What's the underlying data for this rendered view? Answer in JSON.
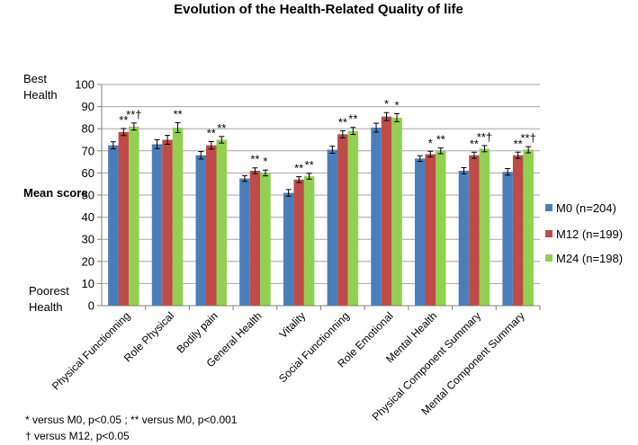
{
  "chart_data": {
    "type": "bar",
    "title": "Evolution of the Health-Related Quality of life",
    "ylabel": "Mean score",
    "top_label": "Best Health",
    "bottom_label": "Poorest Health",
    "ylim": [
      0,
      100
    ],
    "yticks": [
      0,
      10,
      20,
      30,
      40,
      50,
      60,
      70,
      80,
      90,
      100
    ],
    "grid": true,
    "legend_position": "right",
    "categories": [
      "Physical Functionning",
      "Role Physical",
      "Bodily pain",
      "General Health",
      "Vitality",
      "Social Functionning",
      "Role Emotional",
      "Mental Health",
      "Physical Component Summary",
      "Mental Component Summary"
    ],
    "series": [
      {
        "name": "M0 (n=204)",
        "color": "#4a7ebb",
        "values": [
          72.5,
          73,
          68,
          57.5,
          51,
          70.5,
          80.5,
          66.5,
          61,
          60.5
        ],
        "errors": [
          1.6,
          2.0,
          1.7,
          1.3,
          1.5,
          1.6,
          2.0,
          1.3,
          1.4,
          1.5
        ]
      },
      {
        "name": "M12 (n=199)",
        "color": "#be4b48",
        "values": [
          78.5,
          75,
          72.5,
          61,
          57,
          77.5,
          85.5,
          68.5,
          68,
          68
        ],
        "errors": [
          1.6,
          2.0,
          1.7,
          1.3,
          1.3,
          1.6,
          1.8,
          1.3,
          1.4,
          1.4
        ]
      },
      {
        "name": "M24 (n=198)",
        "color": "#92d050",
        "values": [
          81,
          80.5,
          75,
          60,
          58.5,
          79,
          85,
          70,
          71,
          70.5
        ],
        "errors": [
          1.6,
          2.2,
          1.5,
          1.3,
          1.3,
          1.6,
          1.8,
          1.3,
          1.4,
          1.4
        ]
      }
    ],
    "significance": [
      {
        "category": "Physical Functionning",
        "series": "M12 (n=199)",
        "text": "**"
      },
      {
        "category": "Physical Functionning",
        "series": "M24 (n=198)",
        "text": "**†"
      },
      {
        "category": "Role Physical",
        "series": "M24 (n=198)",
        "text": "**"
      },
      {
        "category": "Bodily pain",
        "series": "M12 (n=199)",
        "text": "**"
      },
      {
        "category": "Bodily pain",
        "series": "M24 (n=198)",
        "text": "**"
      },
      {
        "category": "General Health",
        "series": "M12 (n=199)",
        "text": "**"
      },
      {
        "category": "General Health",
        "series": "M24 (n=198)",
        "text": "*"
      },
      {
        "category": "Vitality",
        "series": "M12 (n=199)",
        "text": "**"
      },
      {
        "category": "Vitality",
        "series": "M24 (n=198)",
        "text": "**"
      },
      {
        "category": "Social Functionning",
        "series": "M12 (n=199)",
        "text": "**"
      },
      {
        "category": "Social Functionning",
        "series": "M24 (n=198)",
        "text": "**"
      },
      {
        "category": "Role Emotional",
        "series": "M12 (n=199)",
        "text": "*"
      },
      {
        "category": "Role Emotional",
        "series": "M24 (n=198)",
        "text": "*"
      },
      {
        "category": "Mental Health",
        "series": "M12 (n=199)",
        "text": "*"
      },
      {
        "category": "Mental Health",
        "series": "M24 (n=198)",
        "text": "**"
      },
      {
        "category": "Physical Component Summary",
        "series": "M12 (n=199)",
        "text": "**"
      },
      {
        "category": "Physical Component Summary",
        "series": "M24 (n=198)",
        "text": "**†"
      },
      {
        "category": "Mental Component Summary",
        "series": "M12 (n=199)",
        "text": "**"
      },
      {
        "category": "Mental Component Summary",
        "series": "M24 (n=198)",
        "text": "**†"
      }
    ],
    "footnotes": [
      "* versus M0, p<0.05 ; ** versus M0, p<0.001",
      "† versus M12, p<0.05"
    ]
  }
}
